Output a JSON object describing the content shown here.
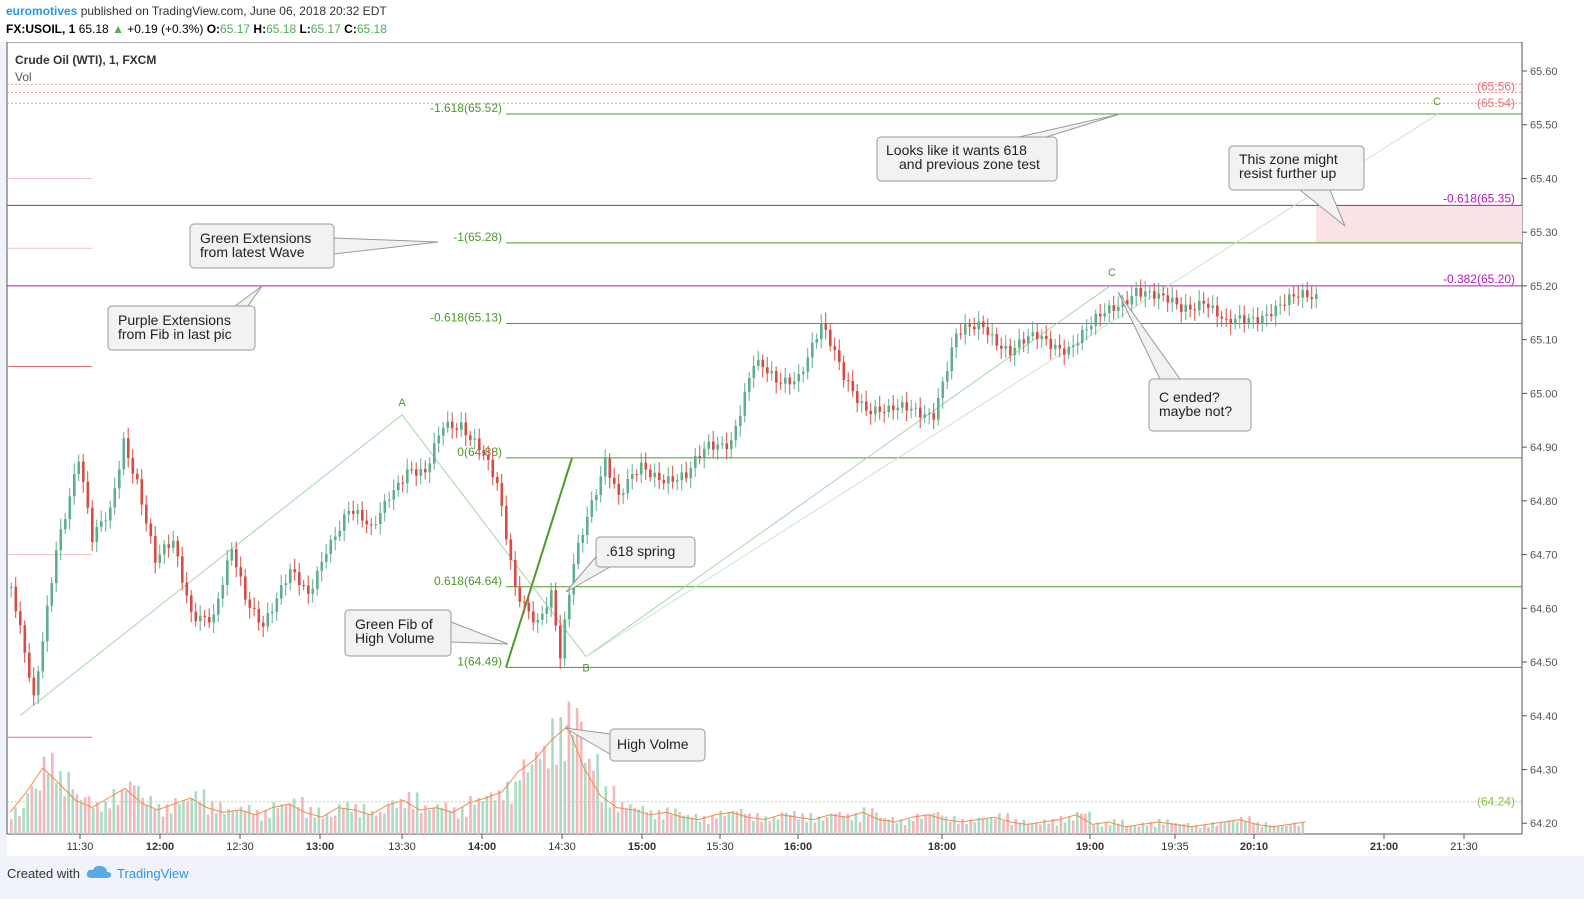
{
  "header": {
    "user": "euromotives",
    "published": "published on TradingView.com, June 06, 2018 20:32 EDT",
    "symbol": "FX:USOIL, 1",
    "last": "65.18",
    "change": "+0.19 (+0.3%)",
    "o_label": "O:",
    "o": "65.17",
    "h_label": "H:",
    "h": "65.18",
    "l_label": "L:",
    "l": "65.17",
    "c_label": "C:",
    "c": "65.18"
  },
  "legend": {
    "title": "Crude Oil (WTI), 1, FXCM",
    "vol": "Vol"
  },
  "footer": {
    "created_with": "Created with",
    "brand": "TradingView"
  },
  "colors": {
    "up": "#5fae8e",
    "down": "#d64c42",
    "fib_green": "#4c9a2a",
    "purple": "#b01ab7",
    "zone": "#fbe3e5",
    "volume_up": "#a9dcc3",
    "volume_down": "#f4b6b9",
    "volume_ma": "#f58a4a"
  },
  "chart_data": {
    "type": "candlestick",
    "x_ticks": [
      "11:30",
      "12:00",
      "12:30",
      "13:00",
      "13:30",
      "14:00",
      "14:30",
      "15:00",
      "15:30",
      "16:00",
      "18:00",
      "19:00",
      "19:35",
      "20:10",
      "21:00",
      "21:30"
    ],
    "y_ticks": [
      "65.60",
      "65.50",
      "65.40",
      "65.30",
      "65.20",
      "65.10",
      "65.00",
      "64.90",
      "64.80",
      "64.70",
      "64.60",
      "64.50",
      "64.40",
      "64.30",
      "64.20"
    ],
    "ylim": [
      64.18,
      65.65
    ],
    "price_path": [
      [
        0,
        64.64
      ],
      [
        5,
        64.42
      ],
      [
        10,
        64.72
      ],
      [
        15,
        64.88
      ],
      [
        18,
        64.72
      ],
      [
        22,
        64.78
      ],
      [
        25,
        64.92
      ],
      [
        28,
        64.84
      ],
      [
        32,
        64.68
      ],
      [
        36,
        64.72
      ],
      [
        40,
        64.6
      ],
      [
        45,
        64.58
      ],
      [
        49,
        64.7
      ],
      [
        52,
        64.62
      ],
      [
        56,
        64.58
      ],
      [
        62,
        64.66
      ],
      [
        66,
        64.62
      ],
      [
        70,
        64.72
      ],
      [
        75,
        64.78
      ],
      [
        80,
        64.74
      ],
      [
        84,
        64.82
      ],
      [
        88,
        64.86
      ],
      [
        92,
        64.84
      ],
      [
        96,
        64.94
      ],
      [
        100,
        64.95
      ],
      [
        104,
        64.9
      ],
      [
        108,
        64.82
      ],
      [
        112,
        64.64
      ],
      [
        117,
        64.58
      ],
      [
        120,
        64.62
      ],
      [
        122,
        64.5
      ],
      [
        125,
        64.68
      ],
      [
        128,
        64.78
      ],
      [
        132,
        64.88
      ],
      [
        135,
        64.8
      ],
      [
        140,
        64.86
      ],
      [
        145,
        64.85
      ],
      [
        150,
        64.84
      ],
      [
        155,
        64.9
      ],
      [
        160,
        64.92
      ],
      [
        165,
        65.05
      ],
      [
        170,
        65.02
      ],
      [
        175,
        65.04
      ],
      [
        180,
        65.12
      ],
      [
        185,
        65.03
      ],
      [
        190,
        64.98
      ],
      [
        195,
        64.96
      ],
      [
        200,
        64.97
      ],
      [
        205,
        64.97
      ],
      [
        210,
        65.1
      ],
      [
        216,
        65.13
      ],
      [
        222,
        65.08
      ],
      [
        228,
        65.1
      ],
      [
        235,
        65.09
      ],
      [
        240,
        65.12
      ],
      [
        245,
        65.16
      ],
      [
        250,
        65.2
      ],
      [
        255,
        65.17
      ],
      [
        260,
        65.16
      ],
      [
        265,
        65.18
      ],
      [
        270,
        65.12
      ],
      [
        275,
        65.14
      ],
      [
        280,
        65.16
      ],
      [
        285,
        65.17
      ],
      [
        290,
        65.18
      ]
    ],
    "volume_series": [
      0.18,
      0.35,
      0.55,
      0.42,
      0.28,
      0.22,
      0.3,
      0.38,
      0.26,
      0.2,
      0.25,
      0.3,
      0.22,
      0.18,
      0.2,
      0.16,
      0.22,
      0.25,
      0.18,
      0.14,
      0.22,
      0.2,
      0.16,
      0.24,
      0.28,
      0.2,
      0.22,
      0.18,
      0.26,
      0.3,
      0.35,
      0.52,
      0.62,
      0.78,
      0.9,
      0.55,
      0.32,
      0.22,
      0.2,
      0.16,
      0.18,
      0.14,
      0.12,
      0.16,
      0.18,
      0.14,
      0.12,
      0.16,
      0.14,
      0.12,
      0.16,
      0.14,
      0.18,
      0.12,
      0.1,
      0.14,
      0.16,
      0.12,
      0.1,
      0.12,
      0.14,
      0.1,
      0.08,
      0.1,
      0.12,
      0.16,
      0.08,
      0.1,
      0.06,
      0.08,
      0.1,
      0.08,
      0.06,
      0.08,
      0.1,
      0.12,
      0.08,
      0.06,
      0.08,
      0.1
    ],
    "price_labels": [
      {
        "text": "(65.56)",
        "value": 65.56,
        "color": "#e57373"
      },
      {
        "text": "(65.54)",
        "value": 65.54,
        "color": "#e57373"
      },
      {
        "text": "(64.24)",
        "value": 64.24,
        "color": "#8bc34a"
      }
    ],
    "fib_levels": [
      {
        "text": "-1.618(65.52)",
        "value": 65.52
      },
      {
        "text": "-1(65.28)",
        "value": 65.28
      },
      {
        "text": "-0.618(65.13)",
        "value": 65.13
      },
      {
        "text": "0(64.88)",
        "value": 64.88
      },
      {
        "text": "0.618(64.64)",
        "value": 64.64
      },
      {
        "text": "1(64.49)",
        "value": 64.49
      }
    ],
    "purple_levels": [
      {
        "text": "-0.618(65.35)",
        "value": 65.35
      },
      {
        "text": "-0.382(65.20)",
        "value": 65.2
      }
    ],
    "wave_points": [
      {
        "label": "A",
        "value": 64.96
      },
      {
        "label": "B",
        "value": 64.51
      },
      {
        "label": "C",
        "value": 65.2
      },
      {
        "label": "C",
        "value": 65.52
      }
    ],
    "annotations": [
      "Looks like it wants 618\nand previous zone test",
      "This zone might\nresist further up",
      "Green Extensions\nfrom latest Wave",
      "Purple Extensions\nfrom Fib in last pic",
      "C ended?\nmaybe not?",
      ".618 spring",
      "Green Fib of\nHigh Volume",
      "High Volme"
    ]
  }
}
